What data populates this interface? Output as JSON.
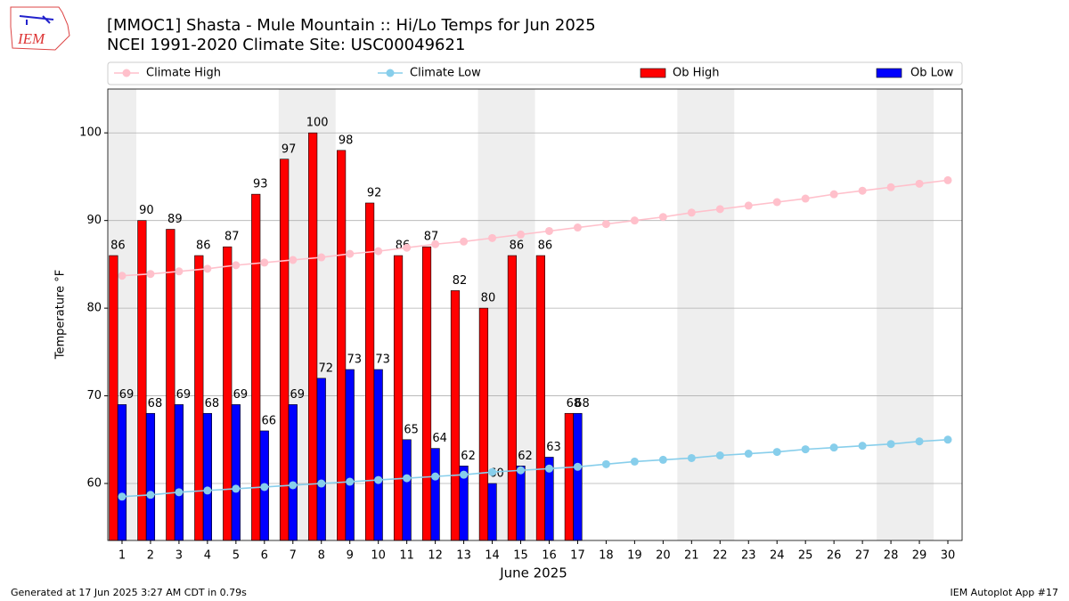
{
  "chart_data": {
    "type": "bar",
    "title": "[MMOC1] Shasta - Mule Mountain :: Hi/Lo Temps for Jun 2025",
    "subtitle": "NCEI 1991-2020 Climate Site: USC00049621",
    "y_label": "Temperature °F",
    "x_label": "June 2025",
    "logo_text": "IEM",
    "footer_left": "Generated at 17 Jun 2025 3:27 AM CDT in 0.79s",
    "footer_right": "IEM Autoplot App #17",
    "categories": [
      "1",
      "2",
      "3",
      "4",
      "5",
      "6",
      "7",
      "8",
      "9",
      "10",
      "11",
      "12",
      "13",
      "14",
      "15",
      "16",
      "17",
      "18",
      "19",
      "20",
      "21",
      "22",
      "23",
      "24",
      "25",
      "26",
      "27",
      "28",
      "29",
      "30"
    ],
    "series": [
      {
        "name": "Climate High",
        "type": "line",
        "color": "#ffc0cb",
        "values": [
          83.7,
          83.9,
          84.2,
          84.5,
          84.9,
          85.2,
          85.5,
          85.8,
          86.2,
          86.5,
          86.9,
          87.3,
          87.6,
          88.0,
          88.4,
          88.8,
          89.2,
          89.6,
          90.0,
          90.4,
          90.9,
          91.3,
          91.7,
          92.1,
          92.5,
          93.0,
          93.4,
          93.8,
          94.2,
          94.6
        ]
      },
      {
        "name": "Climate Low",
        "type": "line",
        "color": "#87ceeb",
        "values": [
          58.5,
          58.7,
          59.0,
          59.2,
          59.4,
          59.6,
          59.8,
          60.0,
          60.2,
          60.4,
          60.6,
          60.8,
          61.0,
          61.3,
          61.5,
          61.7,
          61.9,
          62.2,
          62.5,
          62.7,
          62.9,
          63.2,
          63.4,
          63.6,
          63.9,
          64.1,
          64.3,
          64.5,
          64.8,
          65.0
        ]
      },
      {
        "name": "Ob High",
        "type": "bar",
        "color": "#ff0000",
        "values": [
          86,
          90,
          89,
          86,
          87,
          93,
          97,
          100,
          98,
          92,
          86,
          87,
          82,
          80,
          86,
          86,
          68,
          null,
          null,
          null,
          null,
          null,
          null,
          null,
          null,
          null,
          null,
          null,
          null,
          null
        ]
      },
      {
        "name": "Ob Low",
        "type": "bar",
        "color": "#0000ff",
        "values": [
          69,
          68,
          69,
          68,
          69,
          66,
          69,
          72,
          73,
          73,
          65,
          64,
          62,
          60,
          62,
          63,
          68,
          null,
          null,
          null,
          null,
          null,
          null,
          null,
          null,
          null,
          null,
          null,
          null,
          null
        ]
      }
    ],
    "ylim": [
      53.5,
      105
    ],
    "yticks": [
      60,
      70,
      80,
      90,
      100
    ],
    "grid": true
  }
}
